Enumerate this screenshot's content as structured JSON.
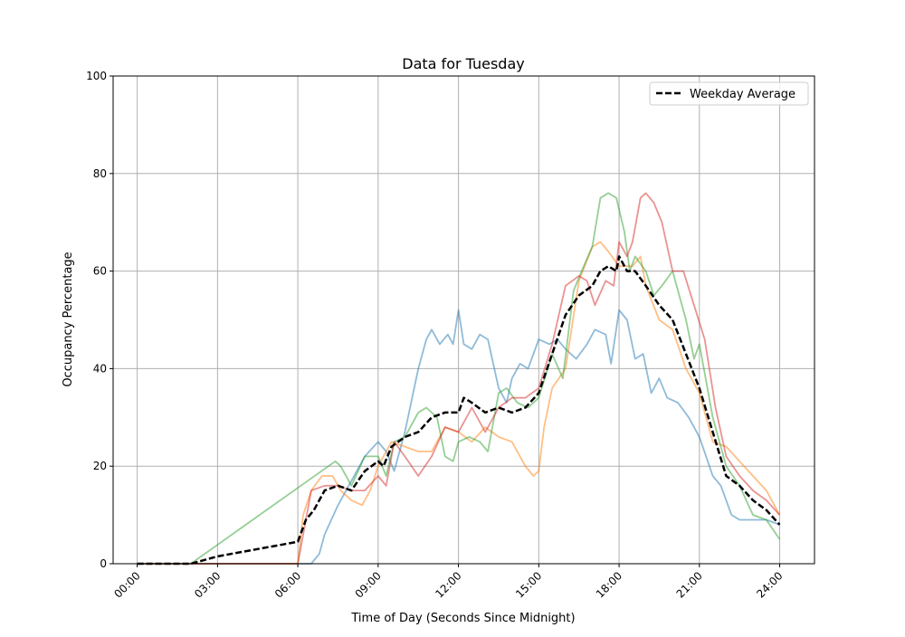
{
  "chart_data": {
    "type": "line",
    "title": "Data for Tuesday",
    "xlabel": "Time of Day (Seconds Since Midnight)",
    "ylabel": "Occupancy Percentage",
    "xlim_hours": [
      -0.9,
      25.3
    ],
    "ylim": [
      0,
      100
    ],
    "x_ticks": [
      {
        "hour": 0,
        "label": "00:00"
      },
      {
        "hour": 3,
        "label": "03:00"
      },
      {
        "hour": 6,
        "label": "06:00"
      },
      {
        "hour": 9,
        "label": "09:00"
      },
      {
        "hour": 12,
        "label": "12:00"
      },
      {
        "hour": 15,
        "label": "15:00"
      },
      {
        "hour": 18,
        "label": "18:00"
      },
      {
        "hour": 21,
        "label": "21:00"
      },
      {
        "hour": 24,
        "label": "24:00"
      }
    ],
    "y_ticks": [
      0,
      20,
      40,
      60,
      80,
      100
    ],
    "grid": true,
    "legend": {
      "position": "top-right",
      "entries": [
        "Weekday Average"
      ]
    },
    "series": [
      {
        "color": "#1f77b4",
        "style": "solid",
        "alpha": 0.5,
        "points": [
          [
            0,
            0
          ],
          [
            6.5,
            0
          ],
          [
            6.8,
            2
          ],
          [
            7,
            6
          ],
          [
            7.5,
            12
          ],
          [
            8,
            17
          ],
          [
            8.5,
            22
          ],
          [
            9,
            25
          ],
          [
            9.3,
            23
          ],
          [
            9.6,
            19
          ],
          [
            10,
            27
          ],
          [
            10.5,
            40
          ],
          [
            10.8,
            46
          ],
          [
            11,
            48
          ],
          [
            11.3,
            45
          ],
          [
            11.6,
            47
          ],
          [
            11.8,
            45
          ],
          [
            12,
            52
          ],
          [
            12.2,
            45
          ],
          [
            12.5,
            44
          ],
          [
            12.8,
            47
          ],
          [
            13.1,
            46
          ],
          [
            13.5,
            36
          ],
          [
            13.8,
            33
          ],
          [
            14,
            38
          ],
          [
            14.3,
            41
          ],
          [
            14.6,
            40
          ],
          [
            15,
            46
          ],
          [
            15.4,
            45
          ],
          [
            15.7,
            46
          ],
          [
            16,
            44
          ],
          [
            16.4,
            42
          ],
          [
            16.8,
            45
          ],
          [
            17.1,
            48
          ],
          [
            17.5,
            47
          ],
          [
            17.7,
            41
          ],
          [
            18,
            52
          ],
          [
            18.3,
            50
          ],
          [
            18.6,
            42
          ],
          [
            18.9,
            43
          ],
          [
            19.2,
            35
          ],
          [
            19.5,
            38
          ],
          [
            19.8,
            34
          ],
          [
            20.2,
            33
          ],
          [
            20.6,
            30
          ],
          [
            21,
            26
          ],
          [
            21.5,
            18
          ],
          [
            21.8,
            16
          ],
          [
            22.2,
            10
          ],
          [
            22.5,
            9
          ],
          [
            23.5,
            9
          ],
          [
            24,
            8
          ]
        ]
      },
      {
        "color": "#ff7f0e",
        "style": "solid",
        "alpha": 0.5,
        "points": [
          [
            0,
            0
          ],
          [
            6,
            0
          ],
          [
            6.2,
            10
          ],
          [
            6.5,
            15
          ],
          [
            6.9,
            18
          ],
          [
            7.3,
            18
          ],
          [
            7.6,
            15
          ],
          [
            8,
            13
          ],
          [
            8.4,
            12
          ],
          [
            8.7,
            15
          ],
          [
            9,
            20
          ],
          [
            9.5,
            25
          ],
          [
            10,
            24
          ],
          [
            10.5,
            23
          ],
          [
            11,
            23
          ],
          [
            11.5,
            28
          ],
          [
            12,
            27
          ],
          [
            12.5,
            25
          ],
          [
            13,
            28
          ],
          [
            13.5,
            26
          ],
          [
            14,
            25
          ],
          [
            14.5,
            20
          ],
          [
            14.8,
            18
          ],
          [
            15,
            19
          ],
          [
            15.2,
            28
          ],
          [
            15.5,
            36
          ],
          [
            16,
            40
          ],
          [
            16.5,
            58
          ],
          [
            17,
            65
          ],
          [
            17.3,
            66
          ],
          [
            17.6,
            64
          ],
          [
            18,
            61
          ],
          [
            18.5,
            61
          ],
          [
            18.8,
            63
          ],
          [
            19,
            57
          ],
          [
            19.5,
            50
          ],
          [
            20,
            48
          ],
          [
            20.5,
            40
          ],
          [
            21,
            35
          ],
          [
            21.5,
            25
          ],
          [
            22,
            24
          ],
          [
            22.5,
            21
          ],
          [
            23,
            18
          ],
          [
            23.5,
            15
          ],
          [
            24,
            10
          ]
        ]
      },
      {
        "color": "#2ca02c",
        "style": "solid",
        "alpha": 0.5,
        "points": [
          [
            0,
            0
          ],
          [
            2,
            0
          ],
          [
            7.4,
            21
          ],
          [
            7.6,
            20
          ],
          [
            8,
            16
          ],
          [
            8.5,
            22
          ],
          [
            9,
            22
          ],
          [
            9.3,
            18
          ],
          [
            9.6,
            25
          ],
          [
            10,
            26
          ],
          [
            10.5,
            31
          ],
          [
            10.8,
            32
          ],
          [
            11.2,
            30
          ],
          [
            11.5,
            22
          ],
          [
            11.8,
            21
          ],
          [
            12,
            25
          ],
          [
            12.4,
            26
          ],
          [
            12.8,
            25
          ],
          [
            13.1,
            23
          ],
          [
            13.5,
            35
          ],
          [
            13.8,
            36
          ],
          [
            14.2,
            33
          ],
          [
            14.6,
            32
          ],
          [
            15,
            34
          ],
          [
            15.5,
            43
          ],
          [
            15.9,
            38
          ],
          [
            16.3,
            56
          ],
          [
            16.6,
            60
          ],
          [
            17,
            65
          ],
          [
            17.3,
            75
          ],
          [
            17.6,
            76
          ],
          [
            17.9,
            75
          ],
          [
            18.2,
            68
          ],
          [
            18.4,
            60
          ],
          [
            18.6,
            63
          ],
          [
            19,
            60
          ],
          [
            19.3,
            55
          ],
          [
            19.6,
            57
          ],
          [
            20,
            60
          ],
          [
            20.5,
            50
          ],
          [
            20.8,
            42
          ],
          [
            21,
            45
          ],
          [
            21.5,
            30
          ],
          [
            22,
            20
          ],
          [
            22.5,
            16
          ],
          [
            23,
            10
          ],
          [
            23.5,
            9
          ],
          [
            24,
            5
          ]
        ]
      },
      {
        "color": "#d62728",
        "style": "solid",
        "alpha": 0.5,
        "points": [
          [
            0,
            0
          ],
          [
            6,
            0
          ],
          [
            6.5,
            15
          ],
          [
            7,
            16
          ],
          [
            7.5,
            16
          ],
          [
            8,
            15
          ],
          [
            8.5,
            15
          ],
          [
            9,
            18
          ],
          [
            9.3,
            16
          ],
          [
            9.6,
            25
          ],
          [
            10,
            22
          ],
          [
            10.5,
            18
          ],
          [
            11,
            22
          ],
          [
            11.5,
            28
          ],
          [
            12,
            27
          ],
          [
            12.5,
            32
          ],
          [
            13,
            27
          ],
          [
            13.5,
            32
          ],
          [
            14,
            34
          ],
          [
            14.5,
            34
          ],
          [
            15,
            36
          ],
          [
            15.5,
            45
          ],
          [
            16,
            57
          ],
          [
            16.5,
            59
          ],
          [
            16.8,
            58
          ],
          [
            17.1,
            53
          ],
          [
            17.5,
            58
          ],
          [
            17.8,
            57
          ],
          [
            18,
            66
          ],
          [
            18.3,
            63
          ],
          [
            18.5,
            66
          ],
          [
            18.8,
            75
          ],
          [
            19,
            76
          ],
          [
            19.3,
            74
          ],
          [
            19.6,
            70
          ],
          [
            20,
            60
          ],
          [
            20.4,
            60
          ],
          [
            20.8,
            53
          ],
          [
            21.2,
            46
          ],
          [
            21.6,
            32
          ],
          [
            22,
            22
          ],
          [
            22.5,
            18
          ],
          [
            23,
            15
          ],
          [
            23.5,
            13
          ],
          [
            24,
            10
          ]
        ]
      },
      {
        "name": "Weekday Average",
        "color": "#000000",
        "style": "dashed",
        "alpha": 1,
        "points": [
          [
            0,
            0
          ],
          [
            2,
            0
          ],
          [
            3,
            1.5
          ],
          [
            4,
            2.5
          ],
          [
            5,
            3.5
          ],
          [
            6,
            4.5
          ],
          [
            6.3,
            9
          ],
          [
            6.6,
            11
          ],
          [
            7,
            15
          ],
          [
            7.5,
            16
          ],
          [
            8,
            15
          ],
          [
            8.5,
            19
          ],
          [
            9,
            21
          ],
          [
            9.2,
            20
          ],
          [
            9.5,
            24
          ],
          [
            10,
            26
          ],
          [
            10.5,
            27
          ],
          [
            11,
            30
          ],
          [
            11.5,
            31
          ],
          [
            12,
            31
          ],
          [
            12.2,
            34
          ],
          [
            12.5,
            33
          ],
          [
            13,
            31
          ],
          [
            13.5,
            32
          ],
          [
            14,
            31
          ],
          [
            14.5,
            32
          ],
          [
            15,
            35
          ],
          [
            15.5,
            43
          ],
          [
            16,
            51
          ],
          [
            16.5,
            55
          ],
          [
            17,
            57
          ],
          [
            17.3,
            60
          ],
          [
            17.6,
            61
          ],
          [
            17.9,
            60
          ],
          [
            18,
            63
          ],
          [
            18.3,
            60
          ],
          [
            18.6,
            60
          ],
          [
            19,
            57
          ],
          [
            19.5,
            53
          ],
          [
            20,
            50
          ],
          [
            20.5,
            43
          ],
          [
            21,
            36
          ],
          [
            21.5,
            27
          ],
          [
            22,
            18
          ],
          [
            22.5,
            16
          ],
          [
            23,
            13
          ],
          [
            23.5,
            11
          ],
          [
            24,
            8
          ]
        ]
      }
    ]
  }
}
